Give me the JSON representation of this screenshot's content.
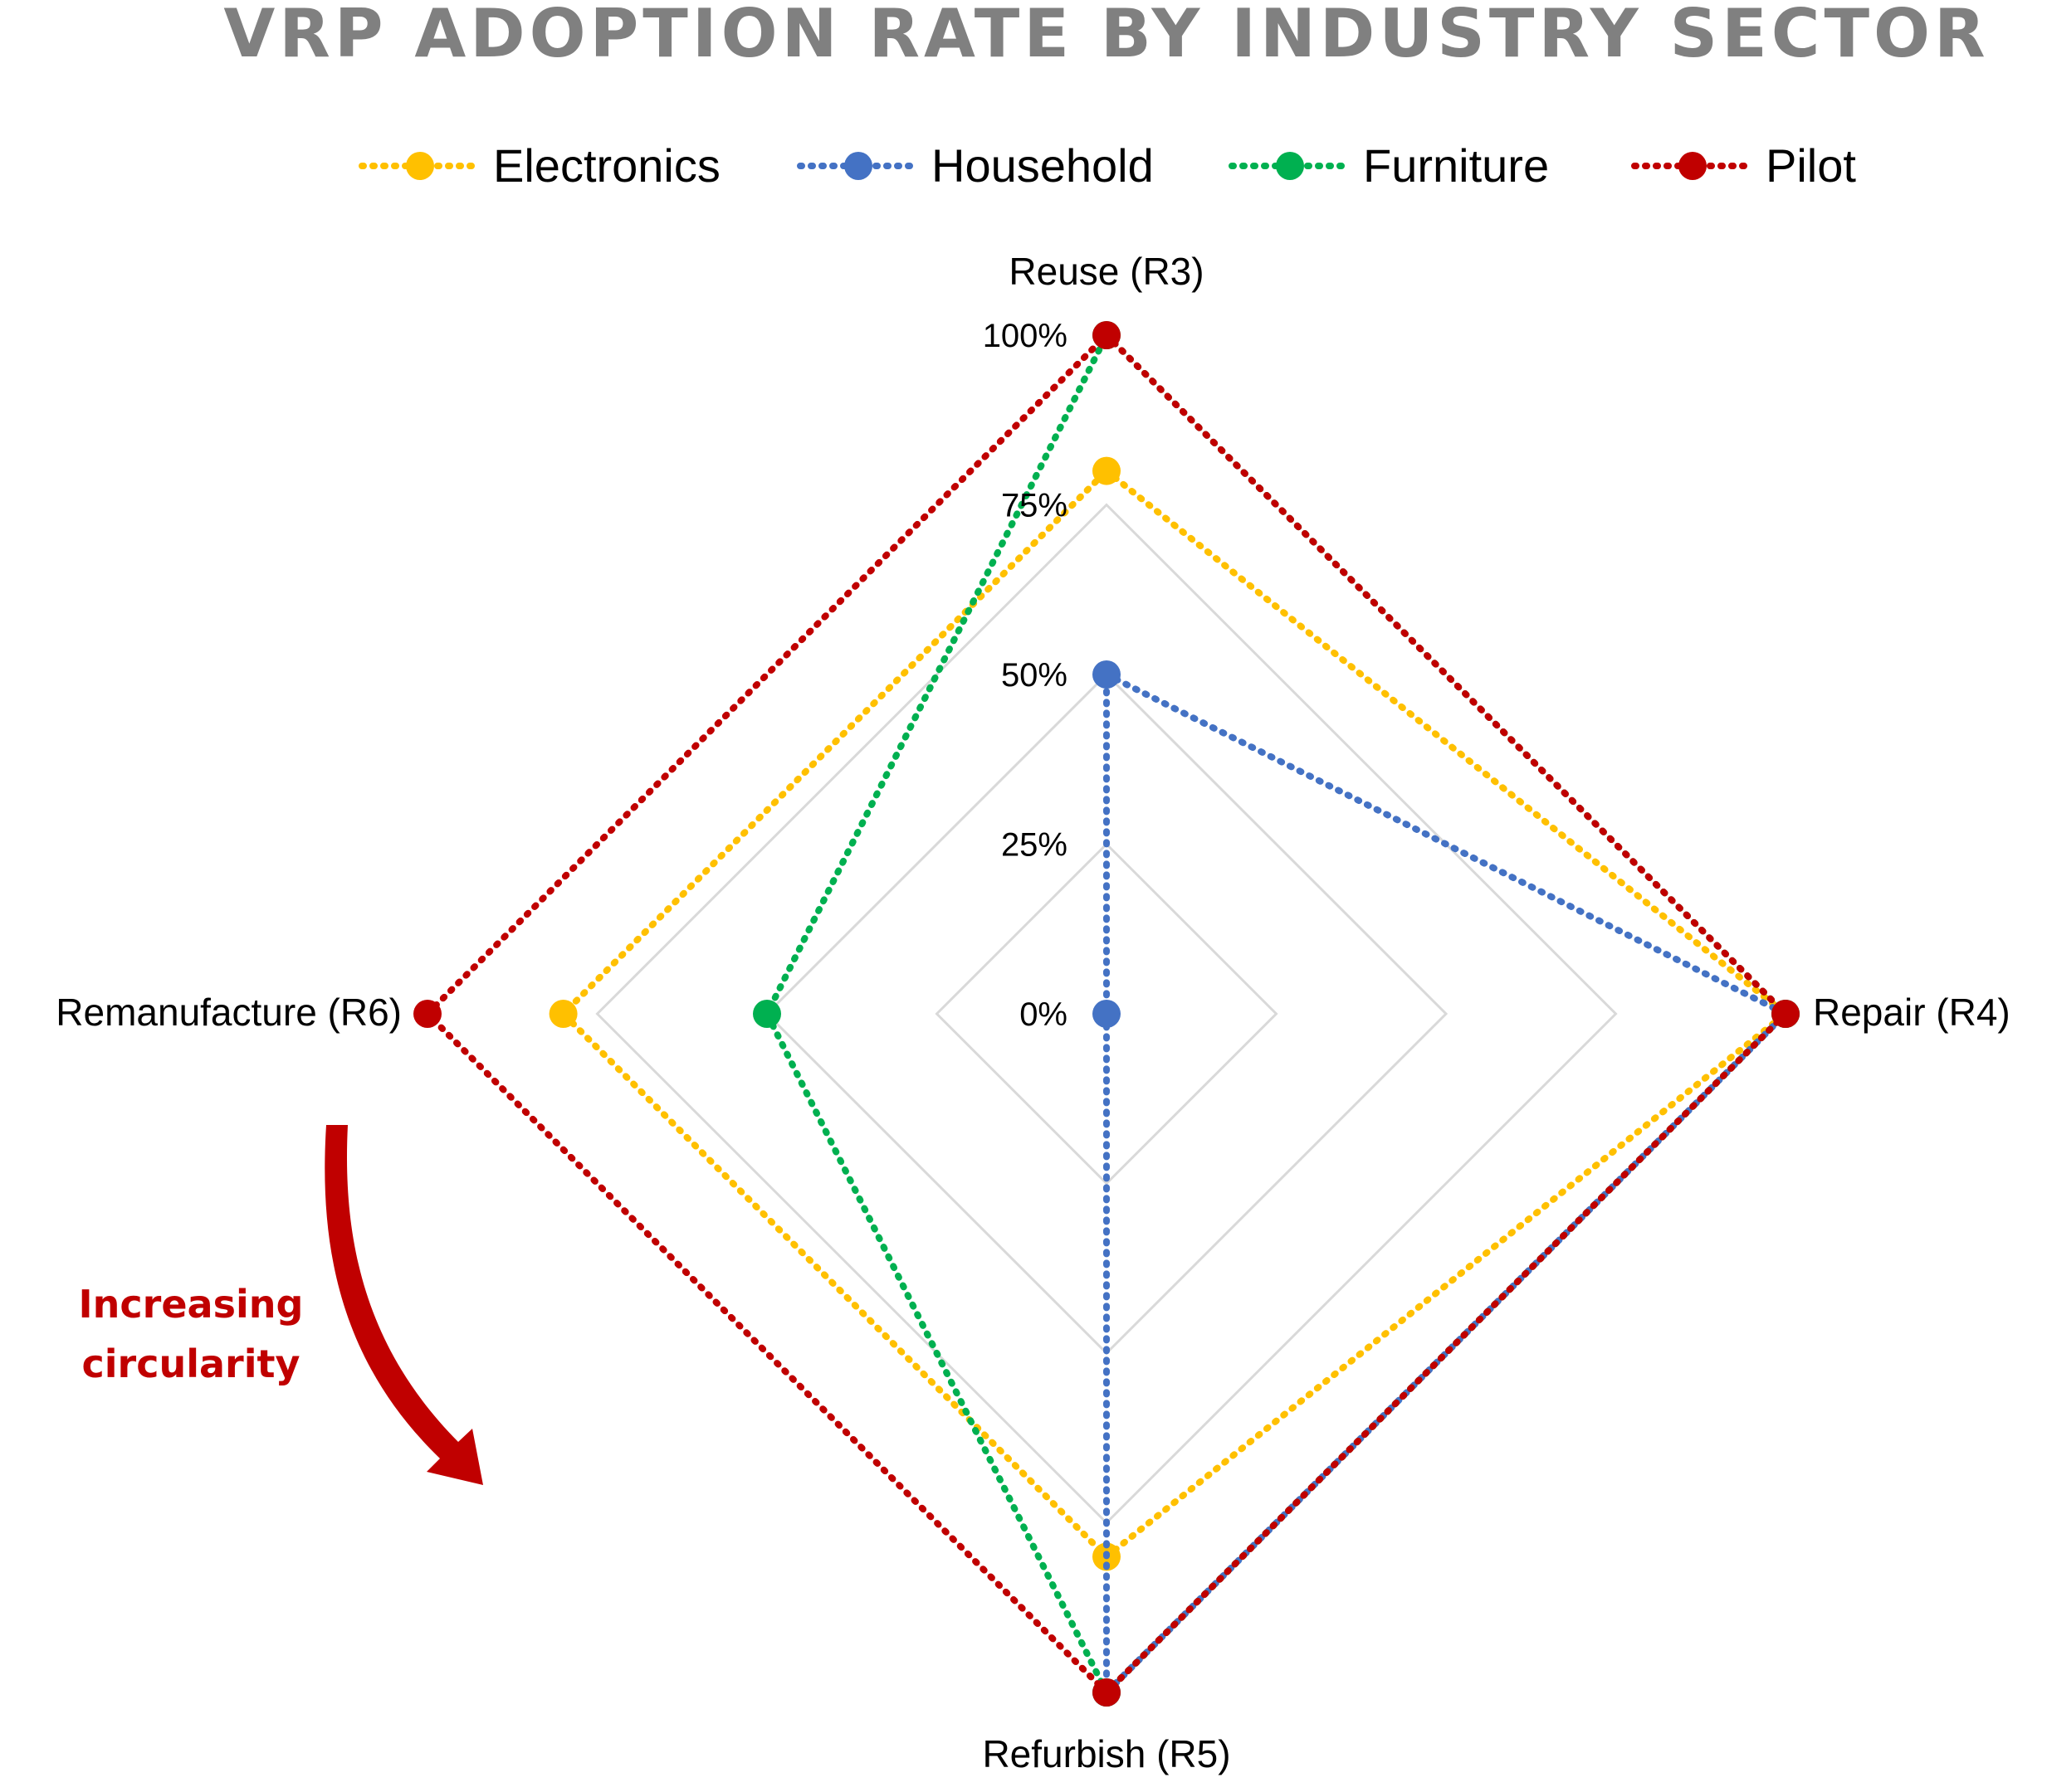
{
  "chart_data": {
    "type": "radar",
    "title": "VRP ADOPTION RATE BY INDUSTRY SECTOR",
    "axes": [
      "Reuse (R3)",
      "Repair  (R4)",
      "Refurbish (R5)",
      "Remanufacture (R6)"
    ],
    "rlim": [
      0,
      100
    ],
    "ticks": [
      0,
      25,
      50,
      75,
      100
    ],
    "tick_labels": [
      "0%",
      "25%",
      "50%",
      "75%",
      "100%"
    ],
    "legend_position": "top",
    "series": [
      {
        "name": "Electronics",
        "color": "#FFC000",
        "values": [
          80,
          100,
          80,
          80
        ]
      },
      {
        "name": "Household",
        "color": "#4472C4",
        "values": [
          50,
          100,
          100,
          0
        ]
      },
      {
        "name": "Furniture",
        "color": "#00B050",
        "values": [
          100,
          100,
          100,
          50
        ]
      },
      {
        "name": "Pilot",
        "color": "#C00000",
        "values": [
          100,
          100,
          100,
          100
        ]
      }
    ],
    "annotation": {
      "lines": [
        "Increasing",
        "circularity"
      ],
      "color": "#C00000"
    }
  }
}
